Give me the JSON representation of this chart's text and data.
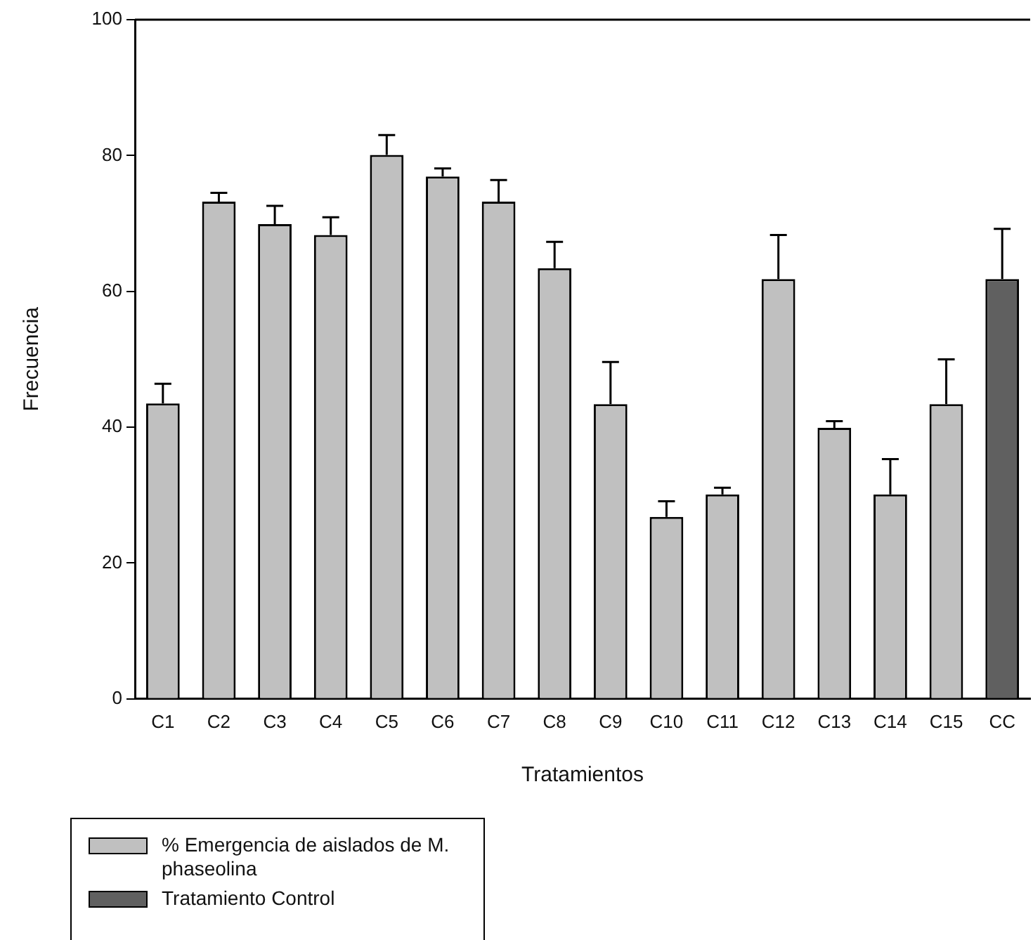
{
  "chart_data": {
    "type": "bar",
    "xlabel": "Tratamientos",
    "ylabel": "Frecuencia",
    "categories": [
      "C1",
      "C2",
      "C3",
      "C4",
      "C5",
      "C6",
      "C7",
      "C8",
      "C9",
      "C10",
      "C11",
      "C12",
      "C13",
      "C14",
      "C15",
      "CC"
    ],
    "series": [
      {
        "name": "% Emergencia de aislados de M. phaseolina",
        "color": "#c0c0c0",
        "values": [
          43.5,
          73.2,
          69.9,
          68.3,
          80.1,
          76.9,
          73.2,
          63.4,
          43.4,
          26.8,
          30.1,
          61.8,
          39.9,
          30.1,
          43.4,
          null
        ],
        "errors": [
          [
            43.5,
            46.4
          ],
          [
            73.2,
            74.5
          ],
          [
            69.9,
            72.6
          ],
          [
            68.3,
            70.9
          ],
          [
            80.1,
            83.0
          ],
          [
            76.9,
            78.1
          ],
          [
            73.2,
            76.4
          ],
          [
            63.4,
            67.3
          ],
          [
            43.4,
            49.6
          ],
          [
            26.8,
            29.1
          ],
          [
            30.1,
            31.1
          ],
          [
            61.8,
            68.3
          ],
          [
            39.9,
            40.9
          ],
          [
            30.1,
            35.3
          ],
          [
            43.4,
            50.0
          ],
          null
        ]
      },
      {
        "name": "Tratamiento Control",
        "color": "#606060",
        "values": [
          null,
          null,
          null,
          null,
          null,
          null,
          null,
          null,
          null,
          null,
          null,
          null,
          null,
          null,
          null,
          61.8
        ],
        "errors": [
          null,
          null,
          null,
          null,
          null,
          null,
          null,
          null,
          null,
          null,
          null,
          null,
          null,
          null,
          null,
          [
            61.8,
            69.2
          ]
        ]
      }
    ],
    "ylim": [
      0,
      100
    ],
    "yticks": [
      0,
      20,
      40,
      60,
      80,
      100
    ],
    "grid": false,
    "legend": "bottom left"
  }
}
